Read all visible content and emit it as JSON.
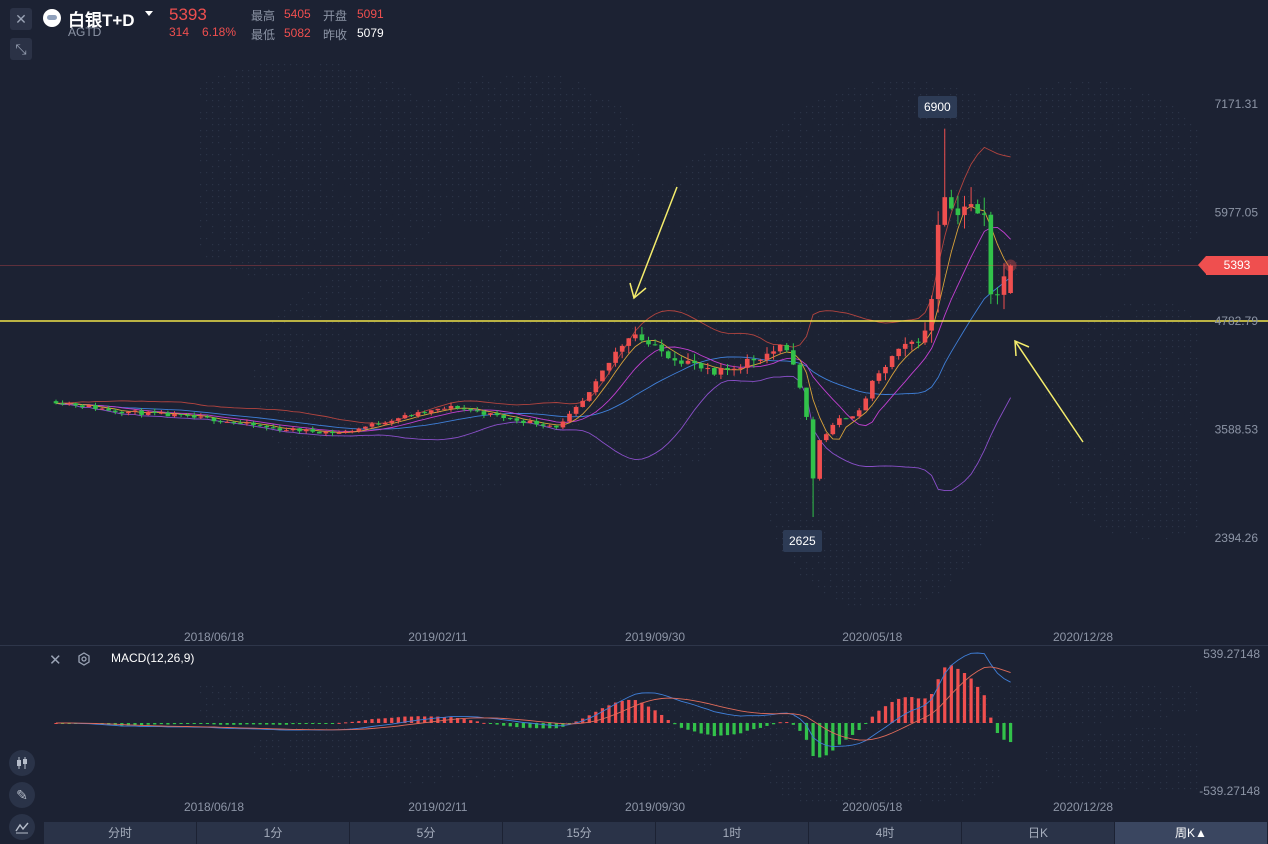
{
  "header": {
    "symbol_name": "白银T+D",
    "symbol_code": "AGTD",
    "price": "5393",
    "change": "314",
    "change_pct": "6.18%",
    "high_label": "最高",
    "high": "5405",
    "open_label": "开盘",
    "open": "5091",
    "low_label": "最低",
    "low": "5082",
    "prev_close_label": "昨收",
    "prev_close": "5079",
    "icons": [
      "close-icon",
      "collapse-icon",
      "silver-logo-icon",
      "caret-down-icon"
    ]
  },
  "colors": {
    "up": "#ef4f4f",
    "down": "#32c24a",
    "bg": "#1c2233",
    "support_line": "#f0e34a",
    "annotation_arrow": "#f4ec6c"
  },
  "chart_data": [
    {
      "type": "candlestick",
      "interval": "周K",
      "y_ticks": [
        "7171.31",
        "5977.05",
        "4782.79",
        "3588.53",
        "2394.26"
      ],
      "x_ticks": [
        "2018/06/18",
        "2019/02/11",
        "2019/09/30",
        "2020/05/18",
        "2020/12/28"
      ],
      "ylim": [
        1750,
        7800
      ],
      "current_price_label": "5393",
      "max_label": "6900",
      "min_label": "2625",
      "support_level": 4782.79,
      "overlays": [
        "bollinger-upper",
        "bollinger-middle",
        "bollinger-lower",
        "ma-short",
        "ma-mid"
      ],
      "anchors": [
        [
          "2018-01-01",
          3900
        ],
        [
          "2018-03-01",
          3800
        ],
        [
          "2018-06-18",
          3700
        ],
        [
          "2018-08-20",
          3600
        ],
        [
          "2018-11-01",
          3550
        ],
        [
          "2019-01-01",
          3720
        ],
        [
          "2019-03-01",
          3840
        ],
        [
          "2019-05-01",
          3700
        ],
        [
          "2019-06-20",
          3620
        ],
        [
          "2019-07-20",
          3950
        ],
        [
          "2019-08-20",
          4450
        ],
        [
          "2019-09-05",
          4680
        ],
        [
          "2019-09-30",
          4470
        ],
        [
          "2019-11-01",
          4350
        ],
        [
          "2019-12-01",
          4180
        ],
        [
          "2020-01-01",
          4320
        ],
        [
          "2020-02-10",
          4480
        ],
        [
          "2020-02-24",
          4350
        ],
        [
          "2020-03-09",
          3720
        ],
        [
          "2020-03-16",
          3050
        ],
        [
          "2020-03-23",
          3470
        ],
        [
          "2020-04-13",
          3700
        ],
        [
          "2020-05-04",
          3780
        ],
        [
          "2020-05-18",
          4100
        ],
        [
          "2020-06-08",
          4380
        ],
        [
          "2020-07-13",
          4650
        ],
        [
          "2020-07-20",
          5050
        ],
        [
          "2020-07-27",
          5900
        ],
        [
          "2020-08-03",
          6250
        ],
        [
          "2020-08-10",
          6010
        ],
        [
          "2020-08-24",
          6060
        ],
        [
          "2020-09-14",
          5900
        ],
        [
          "2020-09-21",
          5150
        ],
        [
          "2020-09-28",
          5100
        ],
        [
          "2020-10-12",
          5393
        ]
      ]
    },
    {
      "type": "macd",
      "title": "MACD(12,26,9)",
      "y_ticks": [
        "539.27148",
        "-539.27148"
      ],
      "ylim": [
        -539.27148,
        539.27148
      ],
      "x_ticks": [
        "2018/06/18",
        "2019/02/11",
        "2019/09/30",
        "2020/05/18",
        "2020/12/28"
      ],
      "icons": [
        "close-icon",
        "settings-icon"
      ]
    }
  ],
  "intervals": [
    {
      "label": "分时"
    },
    {
      "label": "1分"
    },
    {
      "label": "5分"
    },
    {
      "label": "15分"
    },
    {
      "label": "1时"
    },
    {
      "label": "4时"
    },
    {
      "label": "日K"
    },
    {
      "label": "周K▲",
      "active": true
    }
  ],
  "side_tools": [
    "candlestick-icon",
    "pen-icon",
    "indicator-icon"
  ]
}
